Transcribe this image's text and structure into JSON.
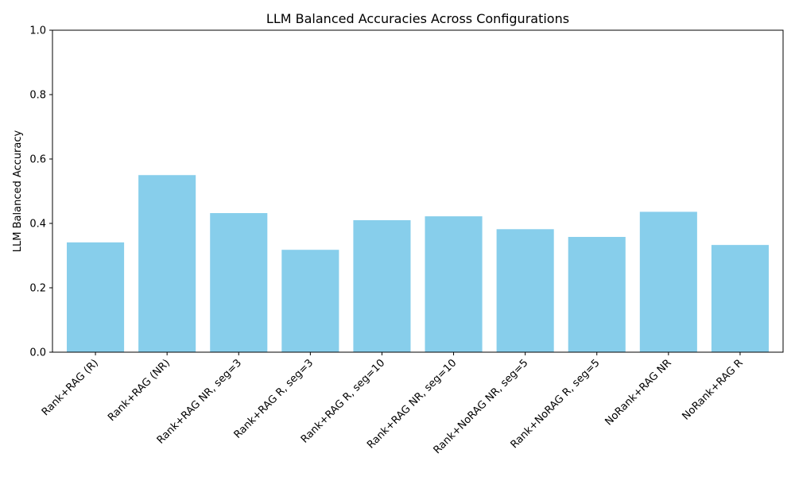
{
  "chart_data": {
    "type": "bar",
    "title": "LLM Balanced Accuracies Across Configurations",
    "xlabel": "",
    "ylabel": "LLM Balanced Accuracy",
    "categories": [
      "Rank+RAG (R)",
      "Rank+RAG (NR)",
      "Rank+RAG NR, seg=3",
      "Rank+RAG R, seg=3",
      "Rank+RAG R, seg=10",
      "Rank+RAG NR, seg=10",
      "Rank+NoRAG NR, seg=5",
      "Rank+NoRAG R, seg=5",
      "NoRank+RAG NR",
      "NoRank+RAG R"
    ],
    "values": [
      0.341,
      0.55,
      0.432,
      0.318,
      0.41,
      0.422,
      0.382,
      0.358,
      0.436,
      0.333
    ],
    "ylim": [
      0,
      1.0
    ],
    "yticks": [
      "0.0",
      "0.2",
      "0.4",
      "0.6",
      "0.8",
      "1.0"
    ],
    "bar_color": "#87CEEB",
    "grid": false,
    "legend": "none"
  }
}
